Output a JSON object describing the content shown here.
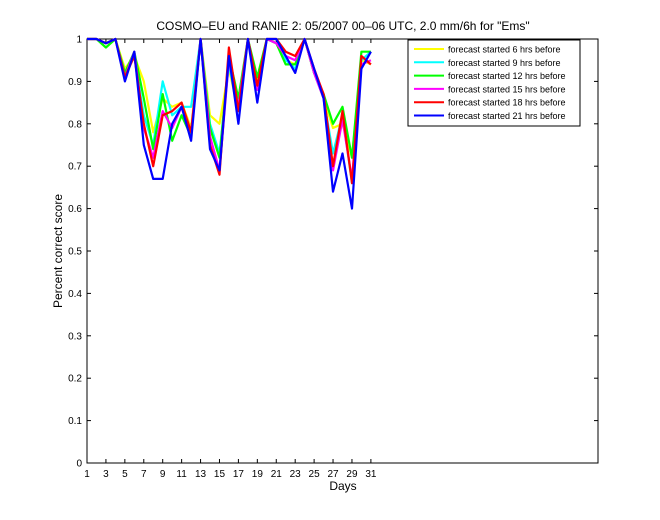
{
  "chart_data": {
    "type": "line",
    "title": "COSMO–EU and RANIE 2: 05/2007 00–06 UTC, 2.0 mm/6h for \"Ems\"",
    "xlabel": "Days",
    "ylabel": "Percent correct score",
    "xlim": [
      1,
      55
    ],
    "ylim": [
      0,
      1
    ],
    "xticks": [
      1,
      3,
      5,
      7,
      9,
      11,
      13,
      15,
      17,
      19,
      21,
      23,
      25,
      27,
      29,
      31
    ],
    "yticks": [
      0,
      0.1,
      0.2,
      0.3,
      0.4,
      0.5,
      0.6,
      0.7,
      0.8,
      0.9,
      1
    ],
    "ytick_labels": [
      "0",
      "0.1",
      "0.2",
      "0.3",
      "0.4",
      "0.5",
      "0.6",
      "0.7",
      "0.8",
      "0.9",
      "1"
    ],
    "grid": false,
    "legend_position": "top-right",
    "x": [
      1,
      2,
      3,
      4,
      5,
      6,
      7,
      8,
      9,
      10,
      11,
      12,
      13,
      14,
      15,
      16,
      17,
      18,
      19,
      20,
      21,
      22,
      23,
      24,
      25,
      26,
      27,
      28,
      29,
      30,
      31
    ],
    "series": [
      {
        "name": "forecast started 6 hrs before",
        "color": "#ffff00",
        "values": [
          1,
          1,
          0.99,
          1,
          0.93,
          0.96,
          0.9,
          0.78,
          0.86,
          0.84,
          0.85,
          0.79,
          1,
          0.82,
          0.8,
          0.93,
          0.83,
          1,
          0.9,
          1,
          0.99,
          0.95,
          0.94,
          1,
          0.92,
          0.86,
          0.79,
          0.8,
          0.72,
          0.95,
          0.94
        ]
      },
      {
        "name": "forecast started 9 hrs before",
        "color": "#00ffff",
        "values": [
          1,
          1,
          0.99,
          1,
          0.92,
          0.96,
          0.82,
          0.75,
          0.9,
          0.82,
          0.84,
          0.84,
          1,
          0.8,
          0.73,
          0.94,
          0.83,
          1,
          0.88,
          1,
          0.99,
          0.95,
          0.93,
          1,
          0.92,
          0.86,
          0.73,
          0.82,
          0.66,
          0.95,
          0.97
        ]
      },
      {
        "name": "forecast started 12 hrs before",
        "color": "#00ff00",
        "values": [
          1,
          1,
          0.98,
          1,
          0.92,
          0.97,
          0.86,
          0.74,
          0.87,
          0.76,
          0.82,
          0.77,
          1,
          0.79,
          0.72,
          0.96,
          0.86,
          1,
          0.91,
          1,
          0.99,
          0.94,
          0.94,
          1,
          0.92,
          0.87,
          0.8,
          0.84,
          0.72,
          0.97,
          0.97
        ]
      },
      {
        "name": "forecast started 15 hrs before",
        "color": "#ff00ff",
        "values": [
          1,
          1,
          0.99,
          1,
          0.91,
          0.97,
          0.79,
          0.72,
          0.83,
          0.79,
          0.84,
          0.78,
          1,
          0.77,
          0.69,
          0.95,
          0.84,
          1,
          0.88,
          1,
          0.99,
          0.96,
          0.95,
          1,
          0.92,
          0.86,
          0.69,
          0.81,
          0.67,
          0.94,
          0.95
        ]
      },
      {
        "name": "forecast started 18 hrs before",
        "color": "#ff0000",
        "values": [
          1,
          1,
          0.99,
          1,
          0.91,
          0.96,
          0.8,
          0.7,
          0.82,
          0.83,
          0.85,
          0.78,
          1,
          0.75,
          0.68,
          0.98,
          0.83,
          1,
          0.89,
          1,
          1,
          0.97,
          0.96,
          1,
          0.93,
          0.87,
          0.7,
          0.83,
          0.66,
          0.96,
          0.94
        ]
      },
      {
        "name": "forecast started 21 hrs before",
        "color": "#0000ff",
        "values": [
          1,
          1,
          0.99,
          1,
          0.9,
          0.97,
          0.75,
          0.67,
          0.67,
          0.8,
          0.84,
          0.76,
          1,
          0.74,
          0.69,
          0.96,
          0.8,
          1,
          0.85,
          1,
          1,
          0.96,
          0.92,
          1,
          0.93,
          0.86,
          0.64,
          0.73,
          0.6,
          0.93,
          0.97
        ]
      }
    ]
  }
}
